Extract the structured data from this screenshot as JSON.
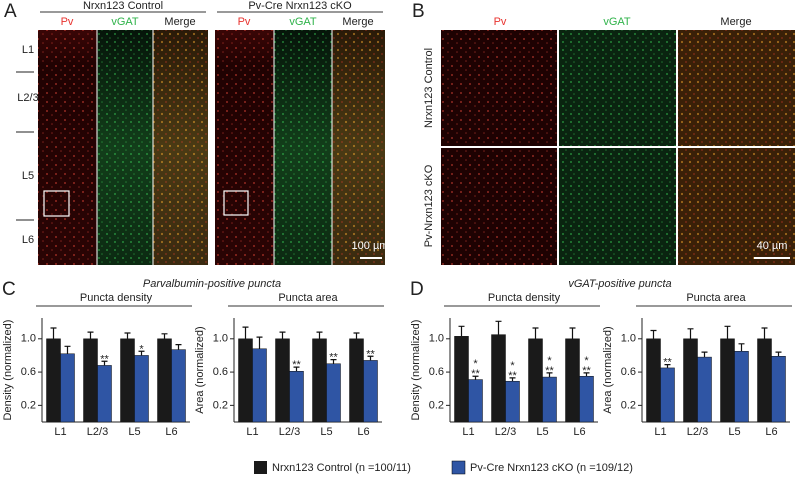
{
  "figure": {
    "panel_a": {
      "label": "A",
      "groups": [
        "Nrxn123 Control",
        "Pv-Cre Nrxn123 cKO"
      ],
      "channels": [
        "Pv",
        "vGAT",
        "Merge"
      ],
      "layers": [
        "L1",
        "L2/3",
        "L5",
        "L6"
      ],
      "scale": "100 µm"
    },
    "panel_b": {
      "label": "B",
      "channels": [
        "Pv",
        "vGAT",
        "Merge"
      ],
      "rows": [
        "Nrxn123 Control",
        "Pv-Nrxn123 cKO"
      ],
      "scale": "40 µm"
    },
    "panel_c": {
      "label": "C",
      "title": "Parvalbumin-positive puncta"
    },
    "panel_d": {
      "label": "D",
      "title": "vGAT-positive puncta"
    }
  },
  "chart_data": [
    {
      "type": "bar",
      "title": "Puncta density",
      "ylabel": "Density (normalized)",
      "categories": [
        "L1",
        "L2/3",
        "L5",
        "L6"
      ],
      "ylim": [
        0,
        1.25
      ],
      "yticks": [
        0.2,
        0.6,
        {
          "value": 1,
          "label": "1.0"
        }
      ],
      "series": [
        {
          "name": "Nrxn123 Control (n =100/11)",
          "color": "#1a1a1a",
          "values": [
            1.0,
            1.0,
            1.0,
            1.0
          ],
          "errors": [
            0.13,
            0.08,
            0.07,
            0.06
          ]
        },
        {
          "name": "Pv-Cre Nrxn123 cKO (n =109/12)",
          "color": "#2f55a4",
          "values": [
            0.82,
            0.68,
            0.8,
            0.87
          ],
          "errors": [
            0.09,
            0.05,
            0.05,
            0.06
          ],
          "value_labels": [
            null,
            "**",
            "*",
            null
          ]
        }
      ]
    },
    {
      "type": "bar",
      "title": "Puncta area",
      "ylabel": "Area (normalized)",
      "categories": [
        "L1",
        "L2/3",
        "L5",
        "L6"
      ],
      "ylim": [
        0,
        1.25
      ],
      "yticks": [
        0.2,
        0.6,
        {
          "value": 1,
          "label": "1.0"
        }
      ],
      "series": [
        {
          "color": "#1a1a1a",
          "values": [
            1.0,
            1.0,
            1.0,
            1.0
          ],
          "errors": [
            0.14,
            0.08,
            0.08,
            0.07
          ]
        },
        {
          "color": "#2f55a4",
          "values": [
            0.88,
            0.61,
            0.7,
            0.74
          ],
          "errors": [
            0.14,
            0.05,
            0.05,
            0.05
          ],
          "value_labels": [
            null,
            "**",
            "**",
            "**"
          ]
        }
      ]
    },
    {
      "type": "bar",
      "title": "Puncta density",
      "ylabel": "Density (normalized)",
      "categories": [
        "L1",
        "L2/3",
        "L5",
        "L6"
      ],
      "ylim": [
        0,
        1.25
      ],
      "yticks": [
        0.2,
        0.6,
        {
          "value": 1,
          "label": "1.0"
        }
      ],
      "series": [
        {
          "color": "#1a1a1a",
          "values": [
            1.03,
            1.05,
            1.0,
            1.0
          ],
          "errors": [
            0.12,
            0.16,
            0.13,
            0.13
          ]
        },
        {
          "color": "#2f55a4",
          "values": [
            0.51,
            0.49,
            0.54,
            0.55
          ],
          "errors": [
            0.04,
            0.04,
            0.05,
            0.04
          ],
          "value_labels": [
            "*\n**",
            "*\n**",
            "*\n**",
            "*\n**"
          ]
        }
      ]
    },
    {
      "type": "bar",
      "title": "Puncta area",
      "ylabel": "Area (normalized)",
      "categories": [
        "L1",
        "L2/3",
        "L5",
        "L6"
      ],
      "ylim": [
        0,
        1.25
      ],
      "yticks": [
        0.2,
        0.6,
        {
          "value": 1,
          "label": "1.0"
        }
      ],
      "series": [
        {
          "color": "#1a1a1a",
          "values": [
            1.0,
            1.0,
            1.0,
            1.0
          ],
          "errors": [
            0.1,
            0.12,
            0.15,
            0.13
          ]
        },
        {
          "color": "#2f55a4",
          "values": [
            0.65,
            0.78,
            0.85,
            0.79
          ],
          "errors": [
            0.04,
            0.06,
            0.09,
            0.05
          ],
          "value_labels": [
            "**",
            null,
            null,
            null
          ]
        }
      ]
    }
  ]
}
